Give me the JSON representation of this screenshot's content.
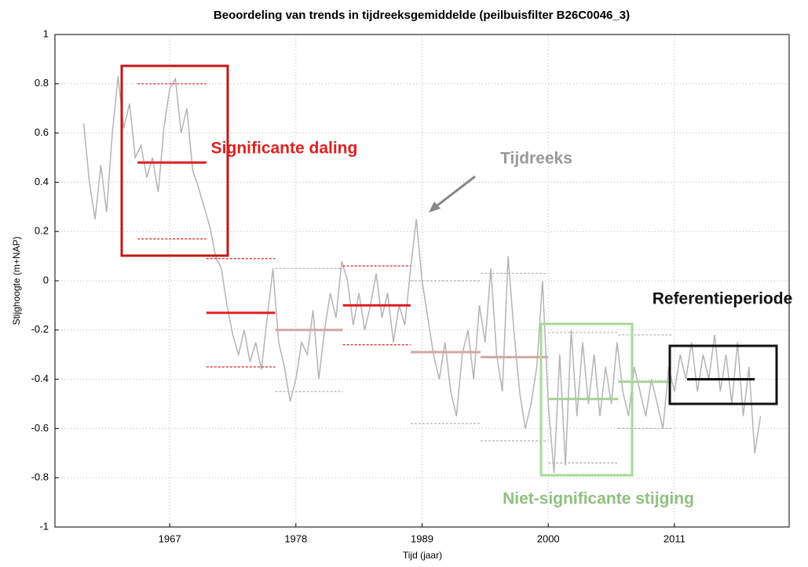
{
  "chart_data": {
    "type": "line",
    "title": "Beoordeling van trends in tijdreeksgemiddelde (peilbuisfilter B26C0046_3)",
    "x_label": "Tijd (jaar)",
    "y_label": "Stijghoogte (m+NAP)",
    "annotations": [
      "Significante daling",
      "Tijdreeks",
      "Referentieperiode",
      "Niet-significante stijging"
    ],
    "color": "#b4b4b4",
    "x": [
      1959.5,
      1960,
      1960.5,
      1961,
      1961.5,
      1962,
      1962.5,
      1963,
      1963.5,
      1964,
      1964.5,
      1965,
      1965.5,
      1966,
      1966.5,
      1967,
      1967.5,
      1968,
      1968.5,
      1969,
      1969.5,
      1970,
      1970.5,
      1971,
      1971.5,
      1972,
      1972.5,
      1973,
      1973.5,
      1974,
      1974.5,
      1975,
      1975.5,
      1976,
      1976.5,
      1977,
      1977.5,
      1978,
      1978.5,
      1979,
      1979.5,
      1980,
      1980.5,
      1981,
      1981.5,
      1982,
      1982.5,
      1983,
      1983.5,
      1984,
      1984.5,
      1985,
      1985.5,
      1986,
      1986.5,
      1987,
      1987.5,
      1988,
      1988.5,
      1989,
      1989.5,
      1990,
      1990.5,
      1991,
      1991.5,
      1992,
      1992.5,
      1993,
      1993.5,
      1994,
      1994.5,
      1995,
      1995.5,
      1996,
      1996.5,
      1997,
      1997.5,
      1998,
      1998.5,
      1999,
      1999.5,
      2000,
      2000.5,
      2001,
      2001.5,
      2002,
      2002.5,
      2003,
      2003.5,
      2004,
      2004.5,
      2005,
      2005.5,
      2006,
      2006.5,
      2007,
      2007.5,
      2008,
      2008.5,
      2009,
      2009.5,
      2010,
      2010.5,
      2011,
      2011.5,
      2012,
      2012.5,
      2013,
      2013.5,
      2014,
      2014.5,
      2015,
      2015.5,
      2016,
      2016.5,
      2017,
      2017.5,
      2018,
      2018.5
    ],
    "values": [
      0.64,
      0.4,
      0.25,
      0.47,
      0.28,
      0.6,
      0.83,
      0.62,
      0.72,
      0.5,
      0.55,
      0.42,
      0.5,
      0.36,
      0.62,
      0.78,
      0.82,
      0.6,
      0.7,
      0.45,
      0.38,
      0.3,
      0.22,
      0.1,
      0.05,
      -0.1,
      -0.22,
      -0.3,
      -0.2,
      -0.33,
      -0.25,
      -0.36,
      -0.15,
      0.05,
      -0.25,
      -0.35,
      -0.49,
      -0.4,
      -0.25,
      -0.3,
      -0.12,
      -0.4,
      -0.2,
      -0.05,
      -0.15,
      0.08,
      0.0,
      -0.18,
      -0.05,
      -0.2,
      -0.1,
      0.03,
      -0.15,
      -0.05,
      -0.25,
      -0.1,
      -0.18,
      0.05,
      0.25,
      0.0,
      -0.15,
      -0.3,
      -0.4,
      -0.25,
      -0.45,
      -0.55,
      -0.3,
      -0.2,
      -0.4,
      -0.1,
      -0.25,
      0.05,
      -0.3,
      -0.45,
      0.1,
      -0.2,
      -0.45,
      -0.6,
      -0.5,
      -0.35,
      0.0,
      -0.5,
      -0.78,
      -0.3,
      -0.75,
      -0.2,
      -0.55,
      -0.25,
      -0.5,
      -0.3,
      -0.55,
      -0.35,
      -0.5,
      -0.25,
      -0.45,
      -0.55,
      -0.35,
      -0.45,
      -0.55,
      -0.4,
      -0.5,
      -0.6,
      -0.35,
      -0.45,
      -0.3,
      -0.4,
      -0.25,
      -0.45,
      -0.3,
      -0.4,
      -0.22,
      -0.45,
      -0.3,
      -0.5,
      -0.25,
      -0.55,
      -0.35,
      -0.7,
      -0.55
    ],
    "segments": [
      {
        "start": 1964.2,
        "end": 1970.2,
        "mean": 0.48,
        "upper": 0.8,
        "lower": 0.17,
        "color": "#e02020",
        "bound_color": "#e02020"
      },
      {
        "start": 1970.2,
        "end": 1976.2,
        "mean": -0.13,
        "upper": 0.09,
        "lower": -0.35,
        "color": "#e02020",
        "bound_color": "#e02020"
      },
      {
        "start": 1976.2,
        "end": 1982.1,
        "mean": -0.2,
        "upper": 0.05,
        "lower": -0.45,
        "color": "#d0a8a8",
        "bound_color": "#b0b0b0"
      },
      {
        "start": 1982.1,
        "end": 1988.0,
        "mean": -0.1,
        "upper": 0.06,
        "lower": -0.26,
        "color": "#e02020",
        "bound_color": "#e02020"
      },
      {
        "start": 1988.0,
        "end": 1994.1,
        "mean": -0.29,
        "upper": 0.0,
        "lower": -0.58,
        "color": "#d0a8a8",
        "bound_color": "#b0b0b0"
      },
      {
        "start": 1994.1,
        "end": 2000.0,
        "mean": -0.31,
        "upper": 0.03,
        "lower": -0.65,
        "color": "#d0a8a8",
        "bound_color": "#b0b0b0"
      },
      {
        "start": 2000.0,
        "end": 2006.1,
        "mean": -0.48,
        "upper": -0.21,
        "lower": -0.74,
        "color": "#a8d098",
        "bound_color": "#b0b0b0"
      },
      {
        "start": 2006.1,
        "end": 2010.8,
        "mean": -0.41,
        "upper": -0.22,
        "lower": -0.6,
        "color": "#a8d098",
        "bound_color": "#b0b0b0"
      },
      {
        "start": 2012.1,
        "end": 2018.0,
        "mean": -0.4,
        "color": "#000000"
      }
    ],
    "xlim": [
      1957,
      2021
    ],
    "ylim": [
      -1,
      1
    ],
    "xticks": [
      1967,
      1978,
      1989,
      2000,
      2011
    ],
    "yticks": [
      -1,
      -0.8,
      -0.6,
      -0.4,
      -0.2,
      0,
      0.2,
      0.4,
      0.6,
      0.8,
      1
    ],
    "grid": true
  }
}
